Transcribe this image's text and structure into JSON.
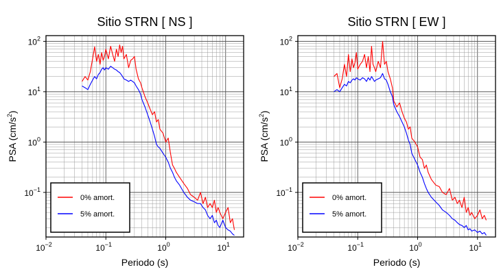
{
  "chart_data": [
    {
      "type": "line",
      "title": "Sitio STRN [ NS ]",
      "xlabel": "Periodo (s)",
      "ylabel_main": "PSA (cm/s",
      "ylabel_exp": "2",
      "ylabel_close": ")",
      "xscale": "log",
      "yscale": "log",
      "xlim": [
        0.01,
        20
      ],
      "ylim": [
        0.013,
        130
      ],
      "grid": true,
      "legend_position": "lower-left",
      "x_ticks": [
        {
          "base": "10",
          "exp": "−2"
        },
        {
          "base": "10",
          "exp": "−1"
        },
        {
          "base": "10",
          "exp": "0"
        },
        {
          "base": "10",
          "exp": "1"
        }
      ],
      "y_ticks": [
        {
          "base": "10",
          "exp": "−1"
        },
        {
          "base": "10",
          "exp": "0"
        },
        {
          "base": "10",
          "exp": "1"
        },
        {
          "base": "10",
          "exp": "2"
        }
      ],
      "series": [
        {
          "name": "0% amort.",
          "color": "#ff0000",
          "x": [
            0.04,
            0.045,
            0.05,
            0.055,
            0.06,
            0.065,
            0.07,
            0.075,
            0.08,
            0.085,
            0.09,
            0.095,
            0.1,
            0.11,
            0.12,
            0.13,
            0.14,
            0.15,
            0.16,
            0.17,
            0.18,
            0.19,
            0.2,
            0.22,
            0.24,
            0.26,
            0.28,
            0.3,
            0.32,
            0.35,
            0.38,
            0.4,
            0.45,
            0.5,
            0.55,
            0.6,
            0.65,
            0.7,
            0.75,
            0.8,
            0.9,
            1.0,
            1.1,
            1.2,
            1.3,
            1.4,
            1.5,
            1.7,
            2.0,
            2.3,
            2.6,
            3.0,
            3.4,
            3.8,
            4.2,
            4.6,
            5.0,
            5.5,
            6.0,
            6.5,
            7.0,
            7.5,
            8.0,
            9.0,
            10.0,
            11.0,
            12.0,
            13.0,
            14.0
          ],
          "y": [
            16,
            20,
            17,
            25,
            45,
            78,
            40,
            55,
            35,
            60,
            42,
            50,
            70,
            45,
            80,
            55,
            40,
            70,
            50,
            85,
            60,
            80,
            45,
            55,
            30,
            42,
            45,
            50,
            28,
            18,
            15,
            12,
            8,
            6,
            4.5,
            3.5,
            4,
            2.5,
            2.8,
            1.8,
            1.5,
            1.0,
            1.2,
            0.6,
            0.35,
            0.3,
            0.25,
            0.2,
            0.15,
            0.12,
            0.09,
            0.08,
            0.07,
            0.1,
            0.06,
            0.08,
            0.05,
            0.06,
            0.05,
            0.07,
            0.04,
            0.05,
            0.04,
            0.03,
            0.04,
            0.05,
            0.025,
            0.03,
            0.018
          ]
        },
        {
          "name": "5% amort.",
          "color": "#0000ff",
          "x": [
            0.04,
            0.045,
            0.05,
            0.055,
            0.06,
            0.065,
            0.07,
            0.075,
            0.08,
            0.085,
            0.09,
            0.095,
            0.1,
            0.11,
            0.12,
            0.13,
            0.14,
            0.15,
            0.16,
            0.17,
            0.18,
            0.19,
            0.2,
            0.22,
            0.24,
            0.26,
            0.28,
            0.3,
            0.32,
            0.35,
            0.38,
            0.4,
            0.45,
            0.5,
            0.55,
            0.6,
            0.65,
            0.7,
            0.75,
            0.8,
            0.9,
            1.0,
            1.1,
            1.2,
            1.3,
            1.4,
            1.5,
            1.7,
            2.0,
            2.3,
            2.6,
            3.0,
            3.4,
            3.8,
            4.2,
            4.6,
            5.0,
            5.5,
            6.0,
            6.5,
            7.0,
            7.5,
            8.0,
            9.0,
            10.0,
            11.0,
            12.0,
            13.0,
            14.0
          ],
          "y": [
            13,
            12,
            11,
            14,
            17,
            20,
            18,
            22,
            24,
            28,
            30,
            27,
            30,
            28,
            32,
            30,
            28,
            27,
            25,
            24,
            22,
            20,
            18,
            17,
            16,
            17,
            16,
            15,
            13,
            11,
            9,
            7,
            5,
            3.5,
            2.5,
            1.8,
            1.3,
            0.9,
            0.8,
            0.75,
            0.6,
            0.5,
            0.4,
            0.3,
            0.25,
            0.2,
            0.17,
            0.14,
            0.1,
            0.08,
            0.07,
            0.065,
            0.06,
            0.06,
            0.05,
            0.045,
            0.035,
            0.03,
            0.035,
            0.025,
            0.028,
            0.022,
            0.02,
            0.028,
            0.02,
            0.018,
            0.017,
            0.015,
            0.014
          ]
        }
      ]
    },
    {
      "type": "line",
      "title": "Sitio STRN [ EW ]",
      "xlabel": "Periodo (s)",
      "ylabel_main": "PSA (cm/s",
      "ylabel_exp": "2",
      "ylabel_close": ")",
      "xscale": "log",
      "yscale": "log",
      "xlim": [
        0.01,
        20
      ],
      "ylim": [
        0.013,
        130
      ],
      "grid": true,
      "legend_position": "lower-left",
      "x_ticks": [
        {
          "base": "10",
          "exp": "−2"
        },
        {
          "base": "10",
          "exp": "−1"
        },
        {
          "base": "10",
          "exp": "0"
        },
        {
          "base": "10",
          "exp": "1"
        }
      ],
      "y_ticks": [
        {
          "base": "10",
          "exp": "−1"
        },
        {
          "base": "10",
          "exp": "0"
        },
        {
          "base": "10",
          "exp": "1"
        },
        {
          "base": "10",
          "exp": "2"
        }
      ],
      "series": [
        {
          "name": "0% amort.",
          "color": "#ff0000",
          "x": [
            0.04,
            0.045,
            0.05,
            0.055,
            0.06,
            0.065,
            0.07,
            0.075,
            0.08,
            0.085,
            0.09,
            0.095,
            0.1,
            0.11,
            0.12,
            0.13,
            0.14,
            0.15,
            0.16,
            0.17,
            0.18,
            0.19,
            0.2,
            0.22,
            0.24,
            0.26,
            0.28,
            0.3,
            0.32,
            0.35,
            0.38,
            0.4,
            0.45,
            0.5,
            0.55,
            0.6,
            0.65,
            0.7,
            0.75,
            0.8,
            0.9,
            1.0,
            1.1,
            1.2,
            1.3,
            1.4,
            1.5,
            1.7,
            2.0,
            2.3,
            2.6,
            3.0,
            3.4,
            3.8,
            4.2,
            4.6,
            5.0,
            5.5,
            6.0,
            6.5,
            7.0,
            7.5,
            8.0,
            9.0,
            10.0,
            11.0,
            12.0,
            13.0,
            14.0
          ],
          "y": [
            20,
            23,
            12,
            18,
            35,
            20,
            55,
            25,
            45,
            30,
            38,
            60,
            28,
            35,
            40,
            55,
            30,
            50,
            25,
            80,
            35,
            30,
            25,
            40,
            30,
            100,
            35,
            40,
            25,
            18,
            12,
            6.5,
            5,
            6,
            4,
            3,
            2.5,
            1.8,
            2,
            1.2,
            1.0,
            0.8,
            0.5,
            0.45,
            0.3,
            0.35,
            0.25,
            0.18,
            0.14,
            0.13,
            0.1,
            0.09,
            0.12,
            0.07,
            0.08,
            0.06,
            0.07,
            0.05,
            0.08,
            0.04,
            0.05,
            0.035,
            0.04,
            0.03,
            0.035,
            0.045,
            0.03,
            0.035,
            0.028
          ]
        },
        {
          "name": "5% amort.",
          "color": "#0000ff",
          "x": [
            0.04,
            0.045,
            0.05,
            0.055,
            0.06,
            0.065,
            0.07,
            0.075,
            0.08,
            0.085,
            0.09,
            0.095,
            0.1,
            0.11,
            0.12,
            0.13,
            0.14,
            0.15,
            0.16,
            0.17,
            0.18,
            0.19,
            0.2,
            0.22,
            0.24,
            0.26,
            0.28,
            0.3,
            0.32,
            0.35,
            0.38,
            0.4,
            0.45,
            0.5,
            0.55,
            0.6,
            0.65,
            0.7,
            0.75,
            0.8,
            0.9,
            1.0,
            1.1,
            1.2,
            1.3,
            1.4,
            1.5,
            1.7,
            2.0,
            2.3,
            2.6,
            3.0,
            3.4,
            3.8,
            4.2,
            4.6,
            5.0,
            5.5,
            6.0,
            6.5,
            7.0,
            7.5,
            8.0,
            9.0,
            10.0,
            11.0,
            12.0,
            13.0,
            14.0
          ],
          "y": [
            10,
            11,
            10,
            12,
            14,
            13,
            16,
            15,
            17,
            18,
            17,
            19,
            18,
            17,
            19,
            18,
            16,
            19,
            17,
            20,
            18,
            16,
            17,
            18,
            19,
            23,
            18,
            17,
            14,
            10,
            8,
            5.5,
            4,
            3.2,
            2.5,
            2,
            1.5,
            1.1,
            0.9,
            0.6,
            0.45,
            0.35,
            0.25,
            0.2,
            0.15,
            0.12,
            0.1,
            0.08,
            0.065,
            0.055,
            0.045,
            0.04,
            0.035,
            0.03,
            0.028,
            0.025,
            0.023,
            0.022,
            0.02,
            0.022,
            0.018,
            0.019,
            0.017,
            0.018,
            0.016,
            0.017,
            0.015,
            0.016,
            0.014
          ]
        }
      ]
    }
  ]
}
